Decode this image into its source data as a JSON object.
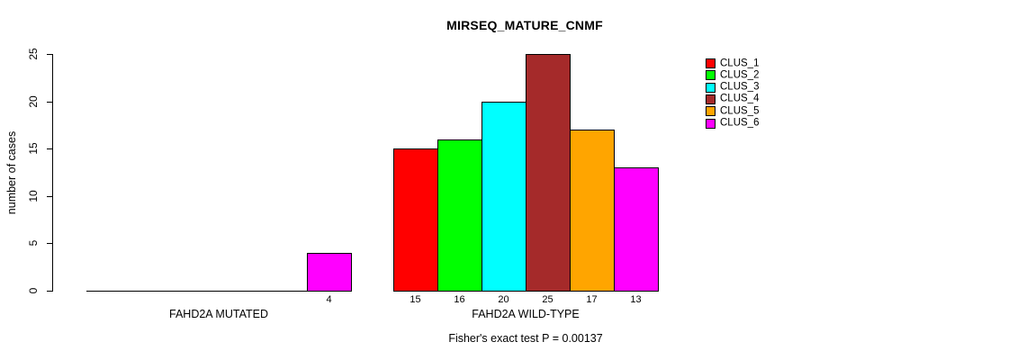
{
  "chart_data": {
    "type": "bar",
    "title": "MIRSEQ_MATURE_CNMF",
    "ylabel": "number of cases",
    "xlabel": "",
    "ylim": [
      0,
      25
    ],
    "yticks": [
      0,
      5,
      10,
      15,
      20,
      25
    ],
    "grid": false,
    "legend_position": "right",
    "value_labels_shown": true,
    "categories": [
      "FAHD2A MUTATED",
      "FAHD2A WILD-TYPE"
    ],
    "series": [
      {
        "name": "CLUS_1",
        "color": "#FF0000",
        "values": [
          0,
          15
        ]
      },
      {
        "name": "CLUS_2",
        "color": "#00FF00",
        "values": [
          0,
          16
        ]
      },
      {
        "name": "CLUS_3",
        "color": "#00FFFF",
        "values": [
          0,
          20
        ]
      },
      {
        "name": "CLUS_4",
        "color": "#A52A2A",
        "values": [
          0,
          25
        ]
      },
      {
        "name": "CLUS_5",
        "color": "#FFA500",
        "values": [
          0,
          17
        ]
      },
      {
        "name": "CLUS_6",
        "color": "#FF00FF",
        "values": [
          4,
          13
        ]
      }
    ],
    "annotation": "Fisher's exact test P = 0.00137",
    "axis_color": "#000000",
    "background_color": "#FFFFFF"
  }
}
